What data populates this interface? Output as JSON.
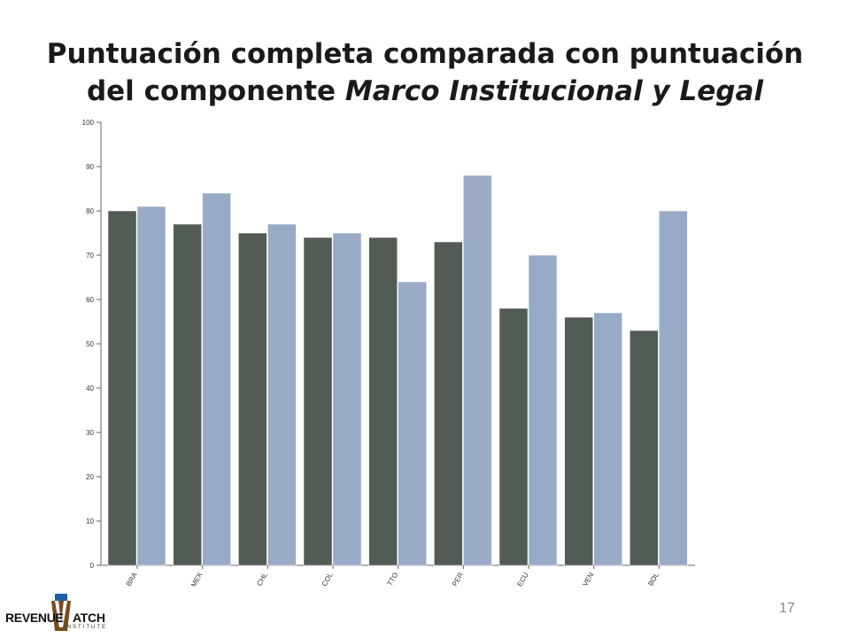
{
  "slide": {
    "title_line1": "Puntuación completa comparada con puntuación",
    "title_line2_prefix": "del componente ",
    "title_line2_italic": "Marco Institucional y Legal",
    "page_number": "17"
  },
  "logo": {
    "text_left": "REVENUE",
    "text_right": "ATCH",
    "subtext": "INSTITUTE",
    "colors": {
      "brand": "#7a4a1a",
      "accent": "#1f5fa8"
    }
  },
  "chart_data": {
    "type": "bar",
    "title": "",
    "xlabel": "",
    "ylabel": "",
    "categories": [
      "BRA",
      "MEX",
      "CHL",
      "COL",
      "TTO",
      "PER",
      "ECU",
      "VEN",
      "BOL"
    ],
    "series": [
      {
        "name": "Puntuación completa",
        "color": "#535b55",
        "values": [
          80,
          77,
          75,
          74,
          74,
          73,
          58,
          56,
          53
        ]
      },
      {
        "name": "Marco Institucional y Legal",
        "color": "#98aac6",
        "values": [
          81,
          84,
          77,
          75,
          64,
          88,
          70,
          57,
          80
        ]
      }
    ],
    "ylim": [
      0,
      100
    ],
    "yticks": [
      0,
      10,
      20,
      30,
      40,
      50,
      60,
      70,
      80,
      90,
      100
    ],
    "grid": false,
    "legend": "none"
  }
}
